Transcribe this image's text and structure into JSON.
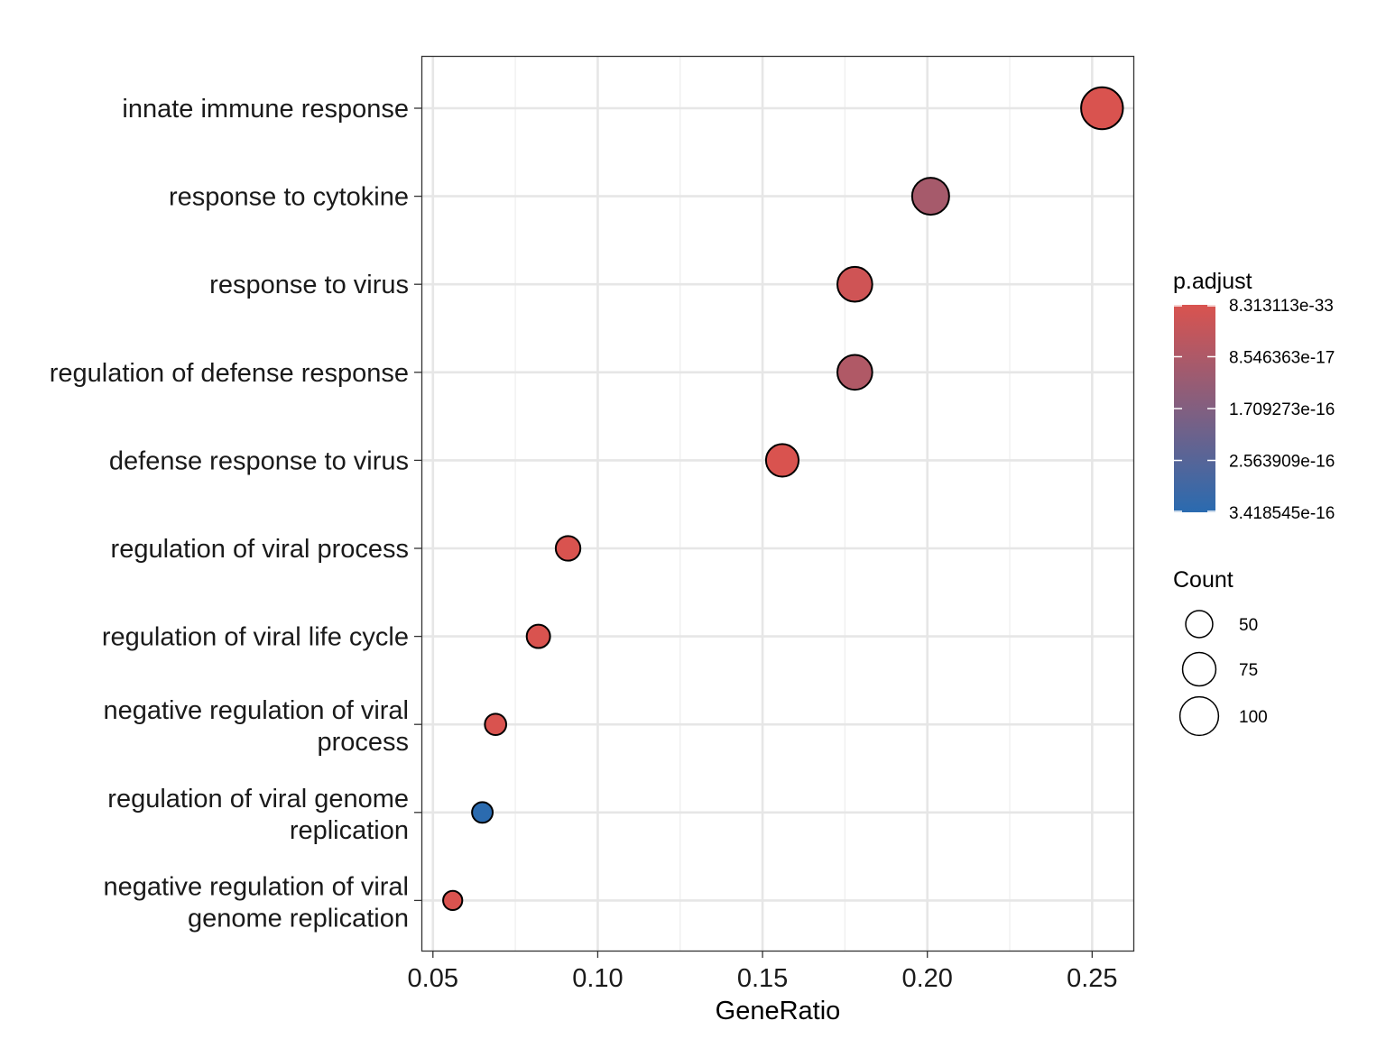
{
  "chart_data": {
    "type": "scatter",
    "title": "",
    "xlabel": "GeneRatio",
    "ylabel": "",
    "xlim": [
      0.0465,
      0.2625
    ],
    "xticks": [
      0.05,
      0.1,
      0.15,
      0.2,
      0.25
    ],
    "xtick_labels": [
      "0.05",
      "0.10",
      "0.15",
      "0.20",
      "0.25"
    ],
    "grid": true,
    "legend_position": "right",
    "categories": [
      "innate immune response",
      "response to cytokine",
      "response to virus",
      "regulation of defense response",
      "defense response to virus",
      "regulation of viral process",
      "regulation of viral life cycle",
      "negative regulation of viral process",
      "regulation of viral genome replication",
      "negative regulation of viral genome replication"
    ],
    "category_lines": [
      [
        "innate immune response"
      ],
      [
        "response to cytokine"
      ],
      [
        "response to virus"
      ],
      [
        "regulation of defense response"
      ],
      [
        "defense response to virus"
      ],
      [
        "regulation of viral process"
      ],
      [
        "regulation of viral life cycle"
      ],
      [
        "negative regulation of viral",
        "process"
      ],
      [
        "regulation of viral genome",
        "replication"
      ],
      [
        "negative regulation of viral",
        "genome replication"
      ]
    ],
    "points": [
      {
        "category": "innate immune response",
        "gene_ratio": 0.253,
        "count": 117,
        "p_adjust": 8.3e-33
      },
      {
        "category": "response to cytokine",
        "gene_ratio": 0.201,
        "count": 92,
        "p_adjust": 1e-16
      },
      {
        "category": "response to virus",
        "gene_ratio": 0.178,
        "count": 82,
        "p_adjust": 2e-17
      },
      {
        "category": "regulation of defense response",
        "gene_ratio": 0.178,
        "count": 82,
        "p_adjust": 8e-17
      },
      {
        "category": "defense response to virus",
        "gene_ratio": 0.156,
        "count": 72,
        "p_adjust": 1e-20
      },
      {
        "category": "regulation of viral process",
        "gene_ratio": 0.091,
        "count": 42,
        "p_adjust": 1e-20
      },
      {
        "category": "regulation of viral life cycle",
        "gene_ratio": 0.082,
        "count": 38,
        "p_adjust": 1e-20
      },
      {
        "category": "negative regulation of viral process",
        "gene_ratio": 0.069,
        "count": 32,
        "p_adjust": 1e-20
      },
      {
        "category": "regulation of viral genome replication",
        "gene_ratio": 0.065,
        "count": 30,
        "p_adjust": 3.4e-16
      },
      {
        "category": "negative regulation of viral genome replication",
        "gene_ratio": 0.056,
        "count": 26,
        "p_adjust": 1e-20
      }
    ],
    "color_legend": {
      "title": "p.adjust",
      "labels": [
        "8.313113e-33",
        "8.546363e-17",
        "1.709273e-16",
        "2.563909e-16",
        "3.418545e-16"
      ],
      "low_color": "#d9534f",
      "high_color": "#2a6bb0",
      "limits": [
        8.313113e-33,
        3.418545e-16
      ]
    },
    "size_legend": {
      "title": "Count",
      "values": [
        50,
        75,
        100
      ],
      "labels": [
        "50",
        "75",
        "100"
      ]
    }
  }
}
